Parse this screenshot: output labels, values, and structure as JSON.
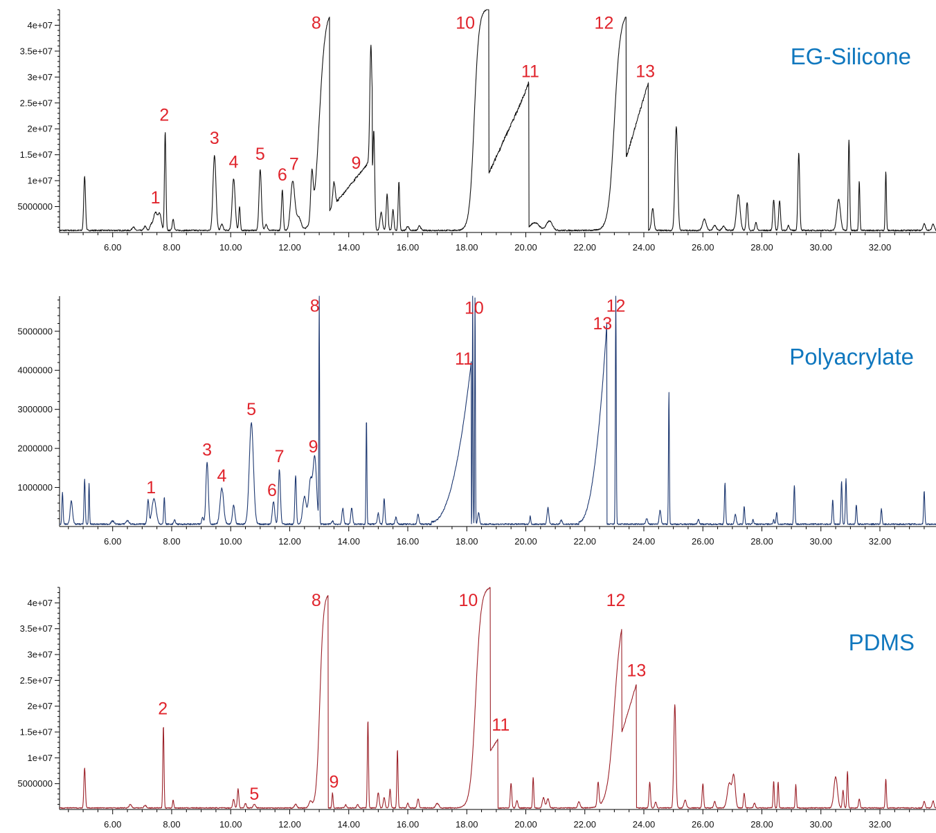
{
  "chart_data": [
    {
      "type": "line",
      "title": "EG-Silicone",
      "color": "#111111",
      "xlim": [
        4.2,
        33.9
      ],
      "ylim": [
        0,
        43000000
      ],
      "grid": false,
      "legend": "none",
      "x_ticks": [
        6,
        8,
        10,
        12,
        14,
        16,
        18,
        20,
        22,
        24,
        26,
        28,
        30,
        32
      ],
      "x_tick_labels": [
        "6.00",
        "8.00",
        "10.00",
        "12.00",
        "14.00",
        "16.00",
        "18.00",
        "20.00",
        "22.00",
        "24.00",
        "26.00",
        "28.00",
        "30.00",
        "32.00"
      ],
      "y_ticks": [
        5000000,
        10000000,
        15000000,
        20000000,
        25000000,
        30000000,
        35000000,
        40000000
      ],
      "y_tick_labels": [
        "5000000",
        "1e+07",
        "1.5e+07",
        "2e+07",
        "2.5e+07",
        "3e+07",
        "3.5e+07",
        "4e+07"
      ],
      "baseline": 400000,
      "peaks": [
        [
          5.05,
          10500000,
          0.03
        ],
        [
          6.7,
          700000,
          0.04
        ],
        [
          7.1,
          800000,
          0.04
        ],
        [
          7.3,
          900000,
          0.04
        ],
        [
          7.45,
          3500000,
          0.07
        ],
        [
          7.6,
          3000000,
          0.05
        ],
        [
          7.78,
          19000000,
          0.025
        ],
        [
          8.05,
          2200000,
          0.03
        ],
        [
          9.45,
          14500000,
          0.05
        ],
        [
          9.7,
          1200000,
          0.04
        ],
        [
          10.1,
          10000000,
          0.05
        ],
        [
          10.3,
          4600000,
          0.025
        ],
        [
          11.0,
          11800000,
          0.04
        ],
        [
          11.2,
          1200000,
          0.04
        ],
        [
          11.75,
          7800000,
          0.03
        ],
        [
          12.1,
          9500000,
          0.07
        ],
        [
          12.3,
          2500000,
          0.08
        ],
        [
          12.75,
          8500000,
          0.04
        ],
        [
          13.5,
          4500000,
          0.04
        ],
        [
          14.75,
          22000000,
          0.035
        ],
        [
          14.85,
          19000000,
          0.03
        ],
        [
          15.1,
          3500000,
          0.04
        ],
        [
          15.3,
          7000000,
          0.03
        ],
        [
          15.5,
          4000000,
          0.03
        ],
        [
          15.7,
          9500000,
          0.025
        ],
        [
          16.0,
          800000,
          0.04
        ],
        [
          16.4,
          900000,
          0.04
        ],
        [
          20.3,
          1500000,
          0.15
        ],
        [
          20.8,
          1800000,
          0.1
        ],
        [
          24.3,
          4200000,
          0.04
        ],
        [
          25.1,
          20000000,
          0.045
        ],
        [
          26.05,
          2200000,
          0.06
        ],
        [
          26.4,
          1000000,
          0.05
        ],
        [
          26.7,
          800000,
          0.05
        ],
        [
          27.2,
          7000000,
          0.06
        ],
        [
          27.5,
          5500000,
          0.03
        ],
        [
          27.8,
          1600000,
          0.03
        ],
        [
          28.4,
          6000000,
          0.03
        ],
        [
          28.6,
          5800000,
          0.03
        ],
        [
          28.9,
          1000000,
          0.03
        ],
        [
          29.25,
          15000000,
          0.03
        ],
        [
          30.6,
          6000000,
          0.06
        ],
        [
          30.95,
          17500000,
          0.025
        ],
        [
          31.3,
          9500000,
          0.02
        ],
        [
          32.2,
          11300000,
          0.02
        ],
        [
          33.5,
          1300000,
          0.04
        ],
        [
          33.8,
          1200000,
          0.04
        ]
      ],
      "segments": [
        {
          "start": 12.8,
          "end": 13.35,
          "shape": "rise_plateau",
          "fall": "sharp",
          "top": 42500000,
          "rise_width": 0.1,
          "rise_center": 13.0
        },
        {
          "start": 13.35,
          "end": 14.8,
          "shape": "slope",
          "from": 3800000,
          "to": 14000000
        },
        {
          "start": 18.0,
          "end": 18.75,
          "shape": "rise_plateau",
          "fall": "sharp",
          "top": 42800000,
          "rise_width": 0.08,
          "rise_center": 18.25
        },
        {
          "start": 18.75,
          "end": 20.1,
          "shape": "slope",
          "from": 11000000,
          "to": 28000000
        },
        {
          "start": 22.7,
          "end": 23.4,
          "shape": "rise_plateau",
          "fall": "sharp",
          "top": 42000000,
          "rise_width": 0.1,
          "rise_center": 23.0
        },
        {
          "start": 23.4,
          "end": 24.15,
          "shape": "slope",
          "from": 14000000,
          "to": 28500000
        }
      ],
      "annotations": [
        {
          "text": "1",
          "x": 7.45,
          "y": 5600000
        },
        {
          "text": "2",
          "x": 7.75,
          "y": 21600000
        },
        {
          "text": "3",
          "x": 9.45,
          "y": 17100000
        },
        {
          "text": "4",
          "x": 10.1,
          "y": 12500000
        },
        {
          "text": "5",
          "x": 11.0,
          "y": 14000000
        },
        {
          "text": "6",
          "x": 11.75,
          "y": 10000000
        },
        {
          "text": "7",
          "x": 12.15,
          "y": 12100000
        },
        {
          "text": "8",
          "x": 12.9,
          "y": 39300000
        },
        {
          "text": "9",
          "x": 14.25,
          "y": 12300000
        },
        {
          "text": "10",
          "x": 17.95,
          "y": 39300000
        },
        {
          "text": "11",
          "x": 20.15,
          "y": 30000000
        },
        {
          "text": "12",
          "x": 22.65,
          "y": 39300000
        },
        {
          "text": "13",
          "x": 24.05,
          "y": 30000000
        }
      ]
    },
    {
      "type": "line",
      "title": "Polyacrylate",
      "color": "#1c3770",
      "xlim": [
        4.2,
        33.9
      ],
      "ylim": [
        0,
        5900000
      ],
      "grid": false,
      "legend": "none",
      "x_ticks": [
        6,
        8,
        10,
        12,
        14,
        16,
        18,
        20,
        22,
        24,
        26,
        28,
        30,
        32
      ],
      "x_tick_labels": [
        "6.00",
        "8.00",
        "10.00",
        "12.00",
        "14.00",
        "16.00",
        "18.00",
        "20.00",
        "22.00",
        "24.00",
        "26.00",
        "28.00",
        "30.00",
        "32.00"
      ],
      "y_ticks": [
        1000000,
        2000000,
        3000000,
        4000000,
        5000000
      ],
      "y_tick_labels": [
        "1000000",
        "2000000",
        "3000000",
        "4000000",
        "5000000"
      ],
      "baseline": 60000,
      "peaks": [
        [
          4.3,
          800000,
          0.02
        ],
        [
          4.6,
          600000,
          0.04
        ],
        [
          5.05,
          1150000,
          0.02
        ],
        [
          5.2,
          1050000,
          0.015
        ],
        [
          6.0,
          80000,
          0.05
        ],
        [
          6.5,
          90000,
          0.05
        ],
        [
          7.2,
          620000,
          0.03
        ],
        [
          7.4,
          650000,
          0.07
        ],
        [
          7.75,
          700000,
          0.02
        ],
        [
          8.1,
          100000,
          0.03
        ],
        [
          9.05,
          180000,
          0.03
        ],
        [
          9.2,
          1600000,
          0.04
        ],
        [
          9.7,
          920000,
          0.06
        ],
        [
          10.1,
          480000,
          0.04
        ],
        [
          10.7,
          2600000,
          0.07
        ],
        [
          11.45,
          580000,
          0.04
        ],
        [
          11.65,
          1400000,
          0.035
        ],
        [
          12.2,
          1250000,
          0.025
        ],
        [
          12.5,
          700000,
          0.06
        ],
        [
          12.7,
          1100000,
          0.06
        ],
        [
          12.85,
          1700000,
          0.06
        ],
        [
          13.0,
          5900000,
          0.012
        ],
        [
          13.45,
          80000,
          0.03
        ],
        [
          13.8,
          400000,
          0.03
        ],
        [
          14.1,
          420000,
          0.03
        ],
        [
          14.6,
          2750000,
          0.015
        ],
        [
          15.0,
          280000,
          0.03
        ],
        [
          15.2,
          650000,
          0.025
        ],
        [
          15.6,
          180000,
          0.03
        ],
        [
          16.35,
          250000,
          0.03
        ],
        [
          18.2,
          5900000,
          0.012
        ],
        [
          18.28,
          5900000,
          0.012
        ],
        [
          18.4,
          300000,
          0.03
        ],
        [
          20.15,
          200000,
          0.02
        ],
        [
          20.75,
          420000,
          0.03
        ],
        [
          21.2,
          100000,
          0.03
        ],
        [
          23.05,
          5900000,
          0.015
        ],
        [
          24.1,
          150000,
          0.03
        ],
        [
          24.55,
          350000,
          0.03
        ],
        [
          24.85,
          3400000,
          0.015
        ],
        [
          25.85,
          120000,
          0.03
        ],
        [
          26.75,
          1050000,
          0.02
        ],
        [
          27.1,
          250000,
          0.03
        ],
        [
          27.4,
          450000,
          0.02
        ],
        [
          27.7,
          120000,
          0.02
        ],
        [
          28.4,
          120000,
          0.02
        ],
        [
          28.5,
          300000,
          0.02
        ],
        [
          29.1,
          1000000,
          0.02
        ],
        [
          30.4,
          620000,
          0.02
        ],
        [
          30.7,
          1100000,
          0.02
        ],
        [
          30.85,
          1150000,
          0.02
        ],
        [
          31.2,
          500000,
          0.02
        ],
        [
          32.05,
          400000,
          0.02
        ],
        [
          33.5,
          850000,
          0.02
        ]
      ],
      "segments": [
        {
          "start": 16.8,
          "end": 18.15,
          "shape": "ramp",
          "from": 60000,
          "to": 4150000
        },
        {
          "start": 21.8,
          "end": 22.75,
          "shape": "ramp",
          "from": 60000,
          "to": 5200000
        }
      ],
      "annotations": [
        {
          "text": "1",
          "x": 7.3,
          "y": 850000
        },
        {
          "text": "3",
          "x": 9.2,
          "y": 1820000
        },
        {
          "text": "4",
          "x": 9.7,
          "y": 1150000
        },
        {
          "text": "5",
          "x": 10.7,
          "y": 2850000
        },
        {
          "text": "6",
          "x": 11.4,
          "y": 780000
        },
        {
          "text": "7",
          "x": 11.65,
          "y": 1650000
        },
        {
          "text": "8",
          "x": 12.85,
          "y": 5500000
        },
        {
          "text": "9",
          "x": 12.8,
          "y": 1900000
        },
        {
          "text": "10",
          "x": 18.25,
          "y": 5450000
        },
        {
          "text": "11",
          "x": 17.9,
          "y": 4150000
        },
        {
          "text": "12",
          "x": 23.05,
          "y": 5500000
        },
        {
          "text": "13",
          "x": 22.6,
          "y": 5050000
        }
      ]
    },
    {
      "type": "line",
      "title": "PDMS",
      "color": "#9b2028",
      "xlim": [
        4.2,
        33.9
      ],
      "ylim": [
        0,
        43000000
      ],
      "grid": false,
      "legend": "none",
      "x_ticks": [
        6,
        8,
        10,
        12,
        14,
        16,
        18,
        20,
        22,
        24,
        26,
        28,
        30,
        32
      ],
      "x_tick_labels": [
        "6.00",
        "8.00",
        "10.00",
        "12.00",
        "14.00",
        "16.00",
        "18.00",
        "20.00",
        "22.00",
        "24.00",
        "26.00",
        "28.00",
        "30.00",
        "32.00"
      ],
      "y_ticks": [
        5000000,
        10000000,
        15000000,
        20000000,
        25000000,
        30000000,
        35000000,
        40000000
      ],
      "y_tick_labels": [
        "5000000",
        "1e+07",
        "1.5e+07",
        "2e+07",
        "2.5e+07",
        "3e+07",
        "3.5e+07",
        "4e+07"
      ],
      "baseline": 300000,
      "peaks": [
        [
          5.05,
          7800000,
          0.025
        ],
        [
          6.6,
          700000,
          0.04
        ],
        [
          7.1,
          500000,
          0.04
        ],
        [
          7.72,
          16000000,
          0.02
        ],
        [
          8.05,
          1600000,
          0.02
        ],
        [
          10.1,
          1700000,
          0.03
        ],
        [
          10.25,
          3700000,
          0.025
        ],
        [
          10.5,
          900000,
          0.03
        ],
        [
          10.8,
          700000,
          0.04
        ],
        [
          12.2,
          700000,
          0.04
        ],
        [
          12.7,
          1200000,
          0.05
        ],
        [
          13.45,
          2900000,
          0.02
        ],
        [
          13.9,
          600000,
          0.03
        ],
        [
          14.3,
          700000,
          0.03
        ],
        [
          14.65,
          17000000,
          0.02
        ],
        [
          15.0,
          3000000,
          0.03
        ],
        [
          15.2,
          2000000,
          0.03
        ],
        [
          15.4,
          3600000,
          0.025
        ],
        [
          15.65,
          11300000,
          0.02
        ],
        [
          16.0,
          900000,
          0.03
        ],
        [
          16.35,
          1800000,
          0.03
        ],
        [
          17.0,
          900000,
          0.05
        ],
        [
          19.5,
          4800000,
          0.025
        ],
        [
          19.7,
          1500000,
          0.03
        ],
        [
          20.25,
          6000000,
          0.02
        ],
        [
          20.6,
          2000000,
          0.04
        ],
        [
          20.75,
          1800000,
          0.04
        ],
        [
          21.8,
          1200000,
          0.04
        ],
        [
          22.45,
          4600000,
          0.03
        ],
        [
          24.2,
          5000000,
          0.025
        ],
        [
          24.4,
          1200000,
          0.03
        ],
        [
          25.05,
          20000000,
          0.035
        ],
        [
          25.4,
          1500000,
          0.04
        ],
        [
          26.0,
          4700000,
          0.025
        ],
        [
          26.4,
          1300000,
          0.03
        ],
        [
          26.9,
          4800000,
          0.07
        ],
        [
          27.05,
          6000000,
          0.05
        ],
        [
          27.4,
          2900000,
          0.025
        ],
        [
          27.75,
          900000,
          0.03
        ],
        [
          28.4,
          5200000,
          0.02
        ],
        [
          28.55,
          5000000,
          0.02
        ],
        [
          29.15,
          4500000,
          0.02
        ],
        [
          30.5,
          6000000,
          0.06
        ],
        [
          30.75,
          3400000,
          0.025
        ],
        [
          30.9,
          7100000,
          0.02
        ],
        [
          31.3,
          1800000,
          0.025
        ],
        [
          32.2,
          5600000,
          0.02
        ],
        [
          33.5,
          1300000,
          0.03
        ],
        [
          33.8,
          1400000,
          0.03
        ]
      ],
      "segments": [
        {
          "start": 12.9,
          "end": 13.3,
          "shape": "rise_plateau",
          "fall": "sharp",
          "top": 41500000,
          "rise_width": 0.06,
          "rise_center": 13.02
        },
        {
          "start": 17.9,
          "end": 18.8,
          "shape": "rise_plateau",
          "fall": "sharp",
          "top": 42800000,
          "rise_width": 0.09,
          "rise_center": 18.3
        },
        {
          "start": 18.8,
          "end": 19.05,
          "shape": "slope",
          "from": 11000000,
          "to": 13300000
        },
        {
          "start": 22.5,
          "end": 23.25,
          "shape": "rise_plateau",
          "fall": "sharp",
          "top": 39000000,
          "rise_width": 0.12,
          "rise_center": 23.0
        },
        {
          "start": 23.25,
          "end": 23.75,
          "shape": "slope",
          "from": 14500000,
          "to": 24000000
        }
      ],
      "annotations": [
        {
          "text": "2",
          "x": 7.7,
          "y": 18400000
        },
        {
          "text": "5",
          "x": 10.8,
          "y": 1900000
        },
        {
          "text": "8",
          "x": 12.9,
          "y": 39400000
        },
        {
          "text": "9",
          "x": 13.5,
          "y": 4200000
        },
        {
          "text": "10",
          "x": 18.05,
          "y": 39400000
        },
        {
          "text": "11",
          "x": 19.15,
          "y": 15300000
        },
        {
          "text": "12",
          "x": 23.05,
          "y": 39400000
        },
        {
          "text": "13",
          "x": 23.75,
          "y": 25800000
        }
      ]
    }
  ]
}
